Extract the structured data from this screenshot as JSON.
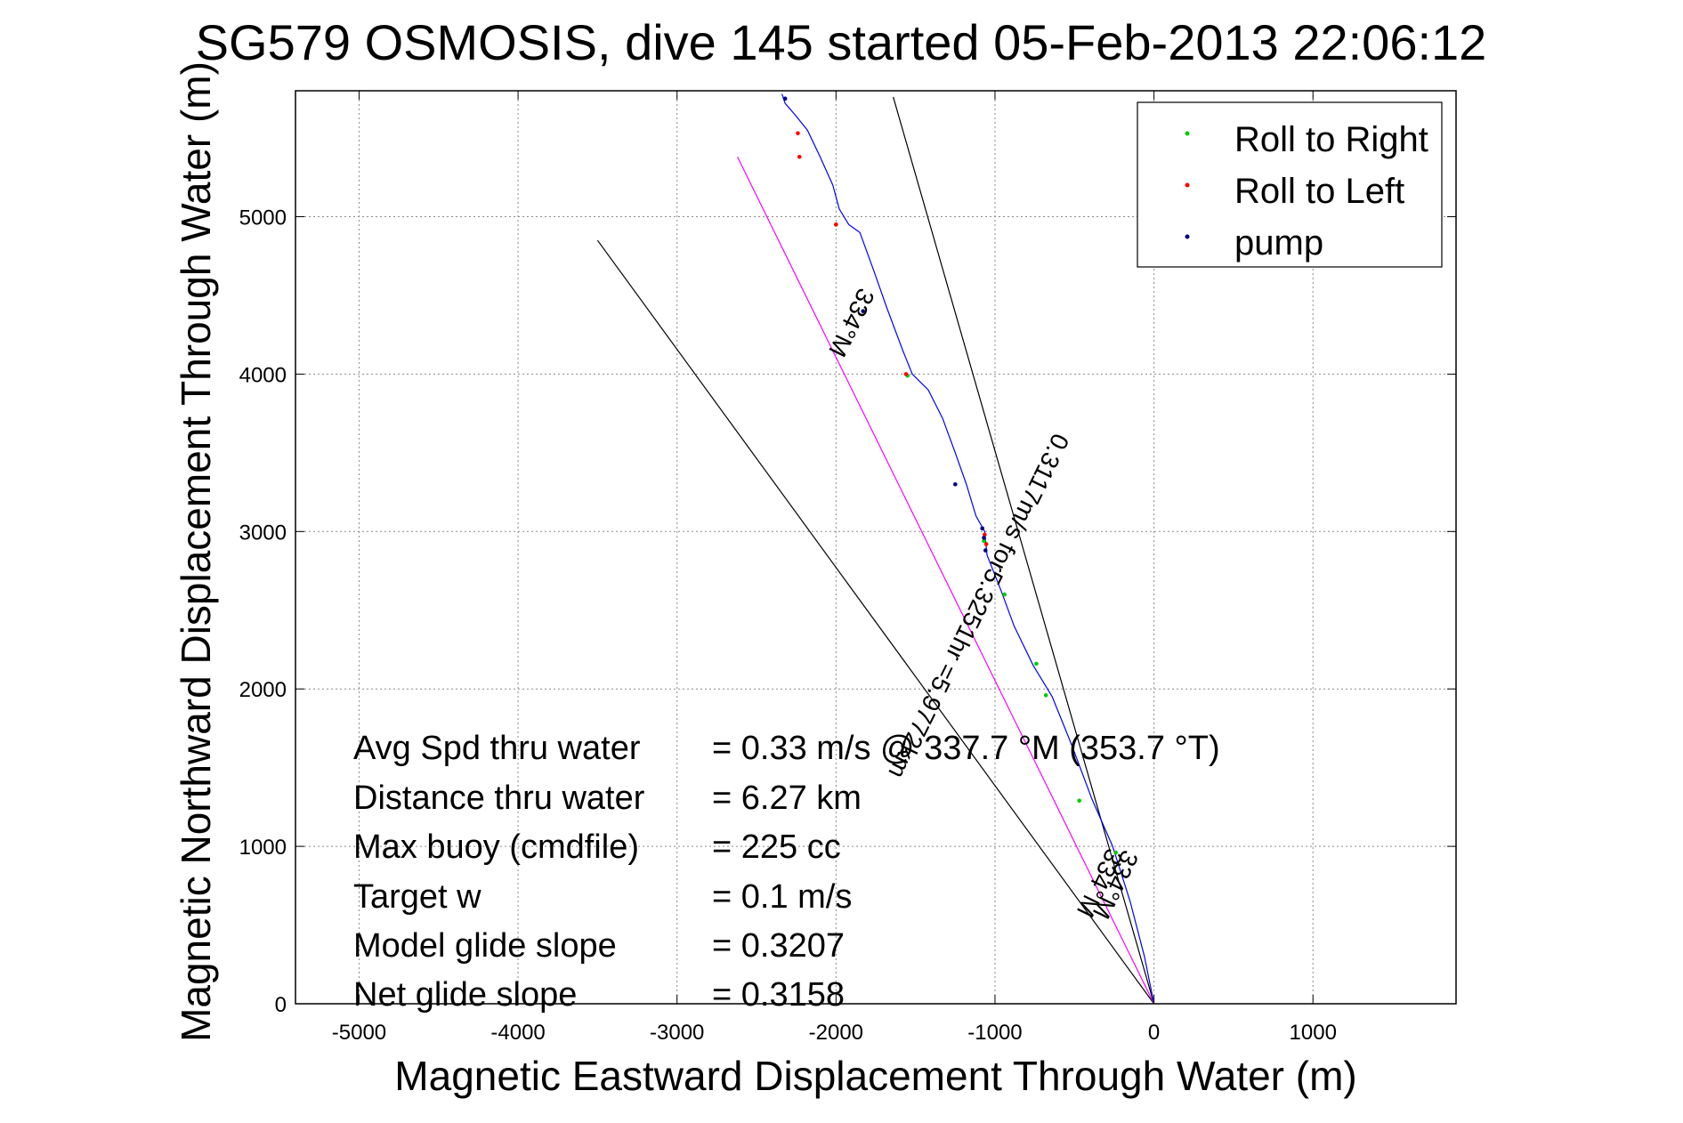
{
  "colors": {
    "track": "#0000ff",
    "roll_right": "#00cc00",
    "roll_left": "#ff0000",
    "pump": "#000080",
    "heading_line": "#000000",
    "dac_line": "#ff00ff",
    "grid": "#8a8a8a"
  },
  "chart_data": {
    "type": "line",
    "title": "SG579 OSMOSIS, dive 145 started 05-Feb-2013 22:06:12",
    "xlabel": "Magnetic Eastward Displacement Through Water (m)",
    "ylabel": "Magnetic Northward Displacement Through Water (m)",
    "xlim": [
      -5400,
      1900
    ],
    "ylim": [
      0,
      5800
    ],
    "xticks": [
      -5000,
      -4000,
      -3000,
      -2000,
      -1000,
      0,
      1000
    ],
    "yticks": [
      0,
      1000,
      2000,
      3000,
      4000,
      5000
    ],
    "grid": true,
    "legend_position": "top-right",
    "legend": [
      {
        "label": "Roll to Right",
        "color": "#00cc00"
      },
      {
        "label": "Roll to Left",
        "color": "#ff0000"
      },
      {
        "label": "pump",
        "color": "#000080"
      }
    ],
    "series": [
      {
        "name": "track",
        "color": "#0000ff",
        "x": [
          0,
          -60,
          -150,
          -260,
          -390,
          -520,
          -640,
          -760,
          -880,
          -960,
          -1050,
          -1065,
          -1120,
          -1180,
          -1250,
          -1330,
          -1420,
          -1520,
          -1580,
          -1680,
          -1760,
          -1850,
          -1920,
          -1980,
          -2020,
          -2100,
          -2180,
          -2260,
          -2320,
          -2340
        ],
        "y": [
          0,
          300,
          650,
          1000,
          1300,
          1650,
          1950,
          2150,
          2400,
          2620,
          2850,
          3000,
          3100,
          3300,
          3500,
          3720,
          3900,
          4000,
          4150,
          4420,
          4650,
          4900,
          4950,
          5050,
          5200,
          5380,
          5550,
          5650,
          5720,
          5780
        ]
      },
      {
        "name": "Roll to Right",
        "color": "#00cc00",
        "x": [
          -240,
          -470,
          -680,
          -740,
          -940,
          -1070,
          -1550,
          -2000
        ],
        "y": [
          960,
          1290,
          1960,
          2160,
          2600,
          2940,
          3990,
          4950
        ]
      },
      {
        "name": "Roll to Left",
        "color": "#ff0000",
        "x": [
          -1055,
          -1065,
          -1560,
          -2000,
          -2230,
          -2240
        ],
        "y": [
          2920,
          2980,
          4000,
          4950,
          5380,
          5530
        ]
      },
      {
        "name": "pump",
        "color": "#000080",
        "x": [
          -1060,
          -1070,
          -1080,
          -1250,
          -1830,
          -2320
        ],
        "y": [
          2880,
          2960,
          3020,
          3300,
          4400,
          5750
        ]
      }
    ],
    "lines": [
      {
        "name": "heading-line-left",
        "color": "#000000",
        "x": [
          0,
          -3500
        ],
        "y": [
          0,
          4850
        ]
      },
      {
        "name": "dac-line",
        "color": "#ff00ff",
        "x": [
          0,
          -2620
        ],
        "y": [
          0,
          5380
        ]
      },
      {
        "name": "heading-line-right",
        "color": "#000000",
        "x": [
          0,
          -1640
        ],
        "y": [
          0,
          5760
        ]
      }
    ],
    "annotations": [
      {
        "name": "heading-annotation-upper",
        "text": "334°M",
        "x": -1950,
        "y": 4350,
        "angle": -64
      },
      {
        "name": "speed-annotation",
        "text": "0.3117m/s for5.3251hr =5.9772km",
        "x": -1150,
        "y": 2550,
        "angle": -64
      },
      {
        "name": "heading-annotation-lower",
        "text": "334°M",
        "x": -290,
        "y": 780,
        "angle": -64
      },
      {
        "name": "heading-annotation-lower-2",
        "text": "334°M",
        "x": -390,
        "y": 790,
        "angle": -64
      }
    ]
  },
  "info": [
    {
      "label": "Avg Spd thru water",
      "value": "=  0.33 m/s @ 337.7 °M (353.7 °T)"
    },
    {
      "label": "Distance thru water",
      "value": "=  6.27 km"
    },
    {
      "label": "Max buoy (cmdfile)",
      "value": "= 225 cc"
    },
    {
      "label": "Target w",
      "value": "= 0.1 m/s"
    },
    {
      "label": "Model glide slope",
      "value": "= 0.3207"
    },
    {
      "label": "Net glide slope",
      "value": "= 0.3158"
    }
  ]
}
